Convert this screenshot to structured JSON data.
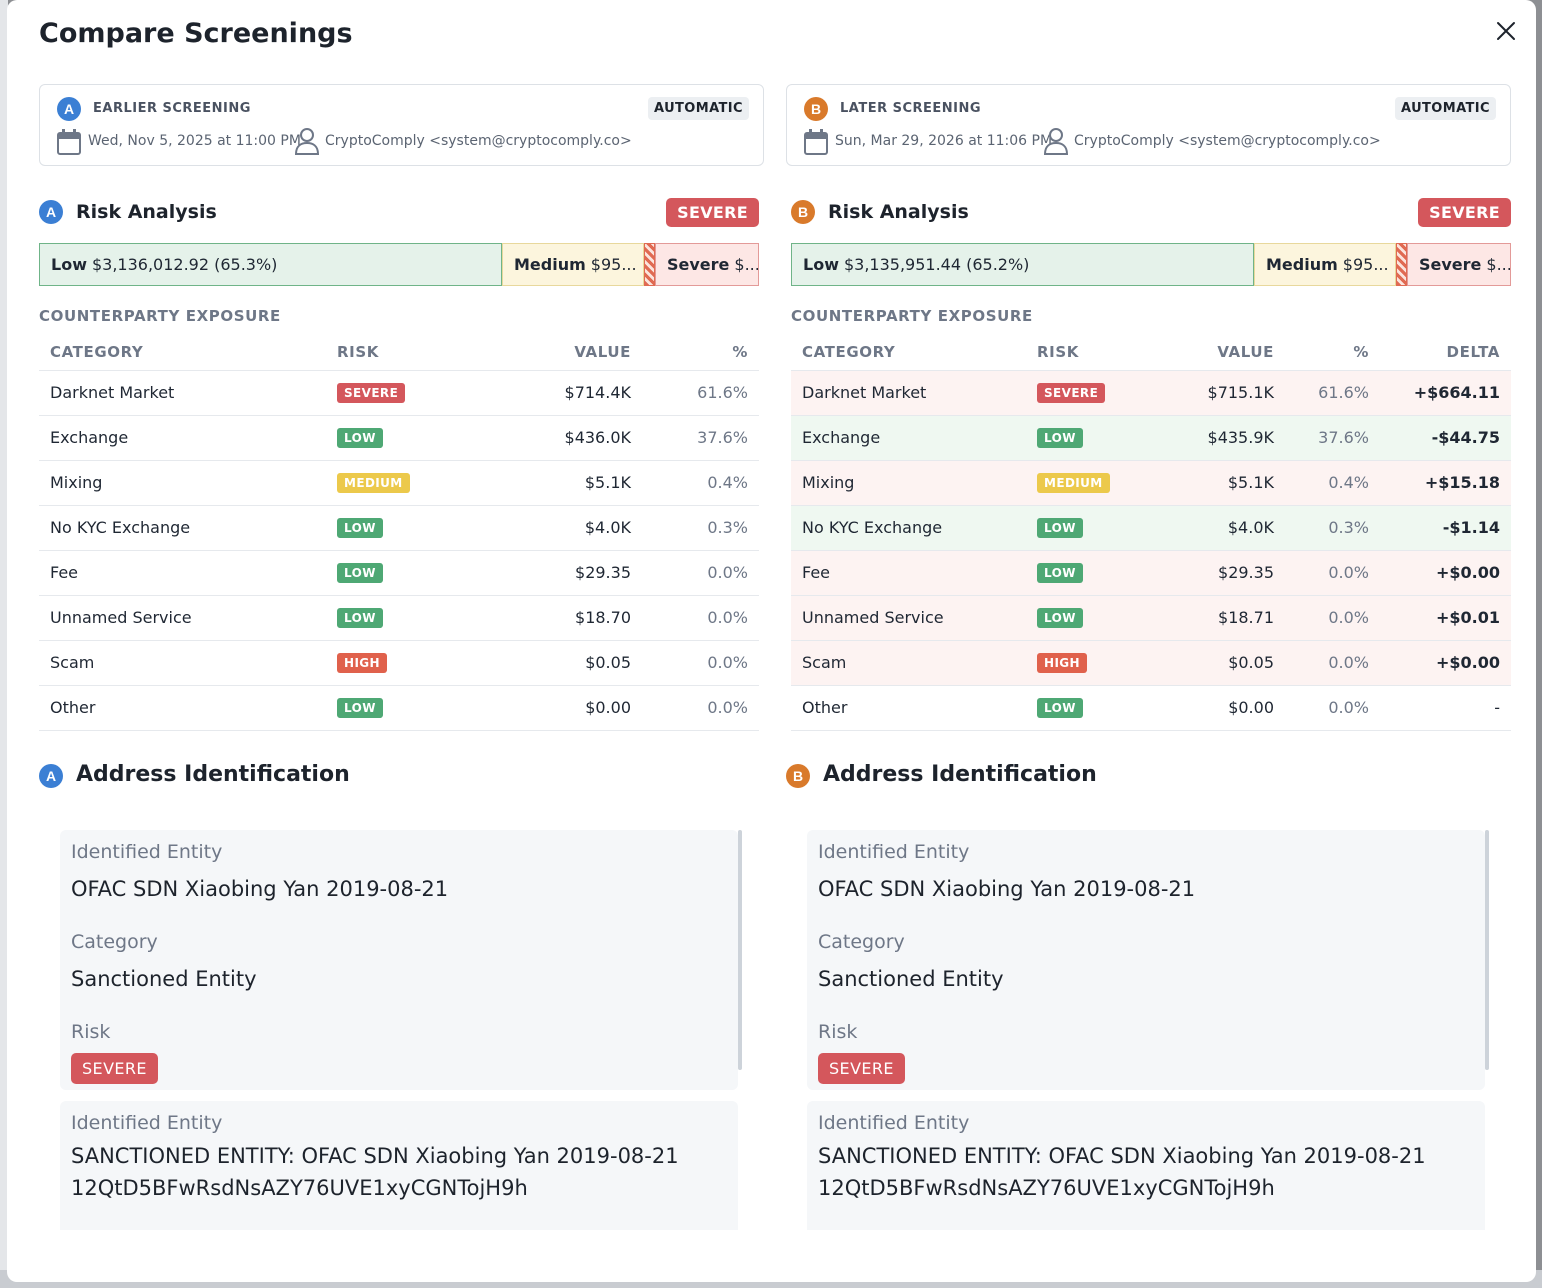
{
  "modal": {
    "title": "Compare Screenings"
  },
  "screenings": [
    {
      "letter": "A",
      "label": "EARLIER SCREENING",
      "mode": "AUTOMATIC",
      "date": "Wed, Nov 5, 2025 at 11:00 PM",
      "user": "CryptoComply <system@cryptocomply.co>",
      "risk_title": "Risk Analysis",
      "risk_level": "SEVERE",
      "bar": {
        "low_label": "Low",
        "low_value": "$3,136,012.92 (65.3%)",
        "medium_label": "Medium",
        "medium_value": "$95...",
        "severe_label": "Severe",
        "severe_value": "$..."
      },
      "exposure_label": "COUNTERPARTY EXPOSURE",
      "columns": [
        "CATEGORY",
        "RISK",
        "VALUE",
        "%"
      ],
      "rows": [
        {
          "category": "Darknet Market",
          "risk": "SEVERE",
          "value": "$714.4K",
          "pct": "61.6%"
        },
        {
          "category": "Exchange",
          "risk": "LOW",
          "value": "$436.0K",
          "pct": "37.6%"
        },
        {
          "category": "Mixing",
          "risk": "MEDIUM",
          "value": "$5.1K",
          "pct": "0.4%"
        },
        {
          "category": "No KYC Exchange",
          "risk": "LOW",
          "value": "$4.0K",
          "pct": "0.3%"
        },
        {
          "category": "Fee",
          "risk": "LOW",
          "value": "$29.35",
          "pct": "0.0%"
        },
        {
          "category": "Unnamed Service",
          "risk": "LOW",
          "value": "$18.70",
          "pct": "0.0%"
        },
        {
          "category": "Scam",
          "risk": "HIGH",
          "value": "$0.05",
          "pct": "0.0%"
        },
        {
          "category": "Other",
          "risk": "LOW",
          "value": "$0.00",
          "pct": "0.0%"
        }
      ],
      "addr_title": "Address Identification",
      "entities": {
        "label_entity": "Identified Entity",
        "entity1": "OFAC SDN Xiaobing Yan 2019-08-21",
        "label_category": "Category",
        "category": "Sanctioned Entity",
        "label_risk": "Risk",
        "risk": "SEVERE",
        "entity2": "SANCTIONED ENTITY: OFAC SDN Xiaobing Yan 2019-08-21 12QtD5BFwRsdNsAZY76UVE1xyCGNTojH9h"
      }
    },
    {
      "letter": "B",
      "label": "LATER SCREENING",
      "mode": "AUTOMATIC",
      "date": "Sun, Mar 29, 2026 at 11:06 PM",
      "user": "CryptoComply <system@cryptocomply.co>",
      "risk_title": "Risk Analysis",
      "risk_level": "SEVERE",
      "bar": {
        "low_label": "Low",
        "low_value": "$3,135,951.44 (65.2%)",
        "medium_label": "Medium",
        "medium_value": "$95...",
        "severe_label": "Severe",
        "severe_value": "$..."
      },
      "exposure_label": "COUNTERPARTY EXPOSURE",
      "columns": [
        "CATEGORY",
        "RISK",
        "VALUE",
        "%",
        "DELTA"
      ],
      "rows": [
        {
          "category": "Darknet Market",
          "risk": "SEVERE",
          "value": "$715.1K",
          "pct": "61.6%",
          "delta": "+$664.11"
        },
        {
          "category": "Exchange",
          "risk": "LOW",
          "value": "$435.9K",
          "pct": "37.6%",
          "delta": "-$44.75"
        },
        {
          "category": "Mixing",
          "risk": "MEDIUM",
          "value": "$5.1K",
          "pct": "0.4%",
          "delta": "+$15.18"
        },
        {
          "category": "No KYC Exchange",
          "risk": "LOW",
          "value": "$4.0K",
          "pct": "0.3%",
          "delta": "-$1.14"
        },
        {
          "category": "Fee",
          "risk": "LOW",
          "value": "$29.35",
          "pct": "0.0%",
          "delta": "+$0.00"
        },
        {
          "category": "Unnamed Service",
          "risk": "LOW",
          "value": "$18.71",
          "pct": "0.0%",
          "delta": "+$0.01"
        },
        {
          "category": "Scam",
          "risk": "HIGH",
          "value": "$0.05",
          "pct": "0.0%",
          "delta": "+$0.00"
        },
        {
          "category": "Other",
          "risk": "LOW",
          "value": "$0.00",
          "pct": "0.0%",
          "delta": "-"
        }
      ],
      "addr_title": "Address Identification",
      "entities": {
        "label_entity": "Identified Entity",
        "entity1": "OFAC SDN Xiaobing Yan 2019-08-21",
        "label_category": "Category",
        "category": "Sanctioned Entity",
        "label_risk": "Risk",
        "risk": "SEVERE",
        "entity2": "SANCTIONED ENTITY: OFAC SDN Xiaobing Yan 2019-08-21 12QtD5BFwRsdNsAZY76UVE1xyCGNTojH9h"
      }
    }
  ],
  "icons": {
    "close": "close-icon",
    "calendar": "calendar-icon",
    "user": "user-icon"
  },
  "colors": {
    "severe": "#d4575c",
    "low": "#4ea874",
    "medium": "#ecc94b",
    "high": "#e0614c",
    "a_accent": "#3b7fd4",
    "b_accent": "#d97a2b"
  }
}
